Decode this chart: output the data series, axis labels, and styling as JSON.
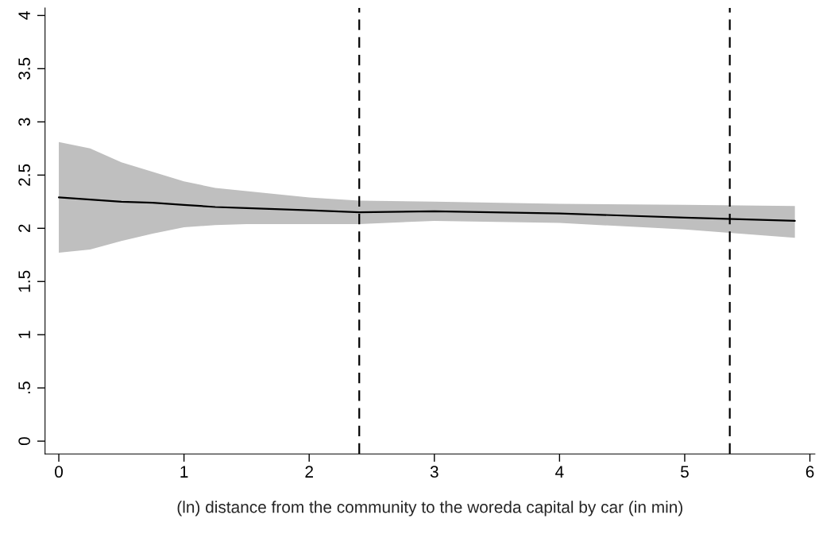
{
  "chart_data": {
    "type": "line",
    "xlabel": "(ln) distance from the community to the woreda capital by car (in min)",
    "x": [
      0,
      0.25,
      0.5,
      0.75,
      1,
      1.25,
      1.5,
      2,
      2.4,
      3,
      4,
      5,
      5.88
    ],
    "series": [
      {
        "color": "#000000",
        "values": [
          2.29,
          2.27,
          2.25,
          2.24,
          2.22,
          2.2,
          2.19,
          2.17,
          2.15,
          2.16,
          2.14,
          2.1,
          2.07
        ],
        "lower": [
          1.77,
          1.8,
          1.88,
          1.95,
          2.01,
          2.03,
          2.04,
          2.04,
          2.04,
          2.07,
          2.05,
          1.99,
          1.91
        ],
        "upper": [
          2.81,
          2.75,
          2.62,
          2.53,
          2.44,
          2.38,
          2.35,
          2.29,
          2.26,
          2.25,
          2.23,
          2.22,
          2.21
        ]
      }
    ],
    "ref_lines": [
      {
        "axis": "x",
        "value": 2.4,
        "line_style": "dashed",
        "color": "#000000"
      },
      {
        "axis": "x",
        "value": 5.36,
        "line_style": "dashed",
        "color": "#000000"
      }
    ],
    "xlim": [
      -0.11,
      6.04
    ],
    "ylim": [
      -0.12,
      4.07
    ],
    "xticks": [
      0,
      1,
      2,
      3,
      4,
      5,
      6
    ],
    "yticks": [
      0,
      {
        "value": 0.5,
        "label": ".5"
      },
      1,
      1.5,
      2,
      2.5,
      3,
      3.5,
      4
    ],
    "grid": false,
    "legend": false
  }
}
